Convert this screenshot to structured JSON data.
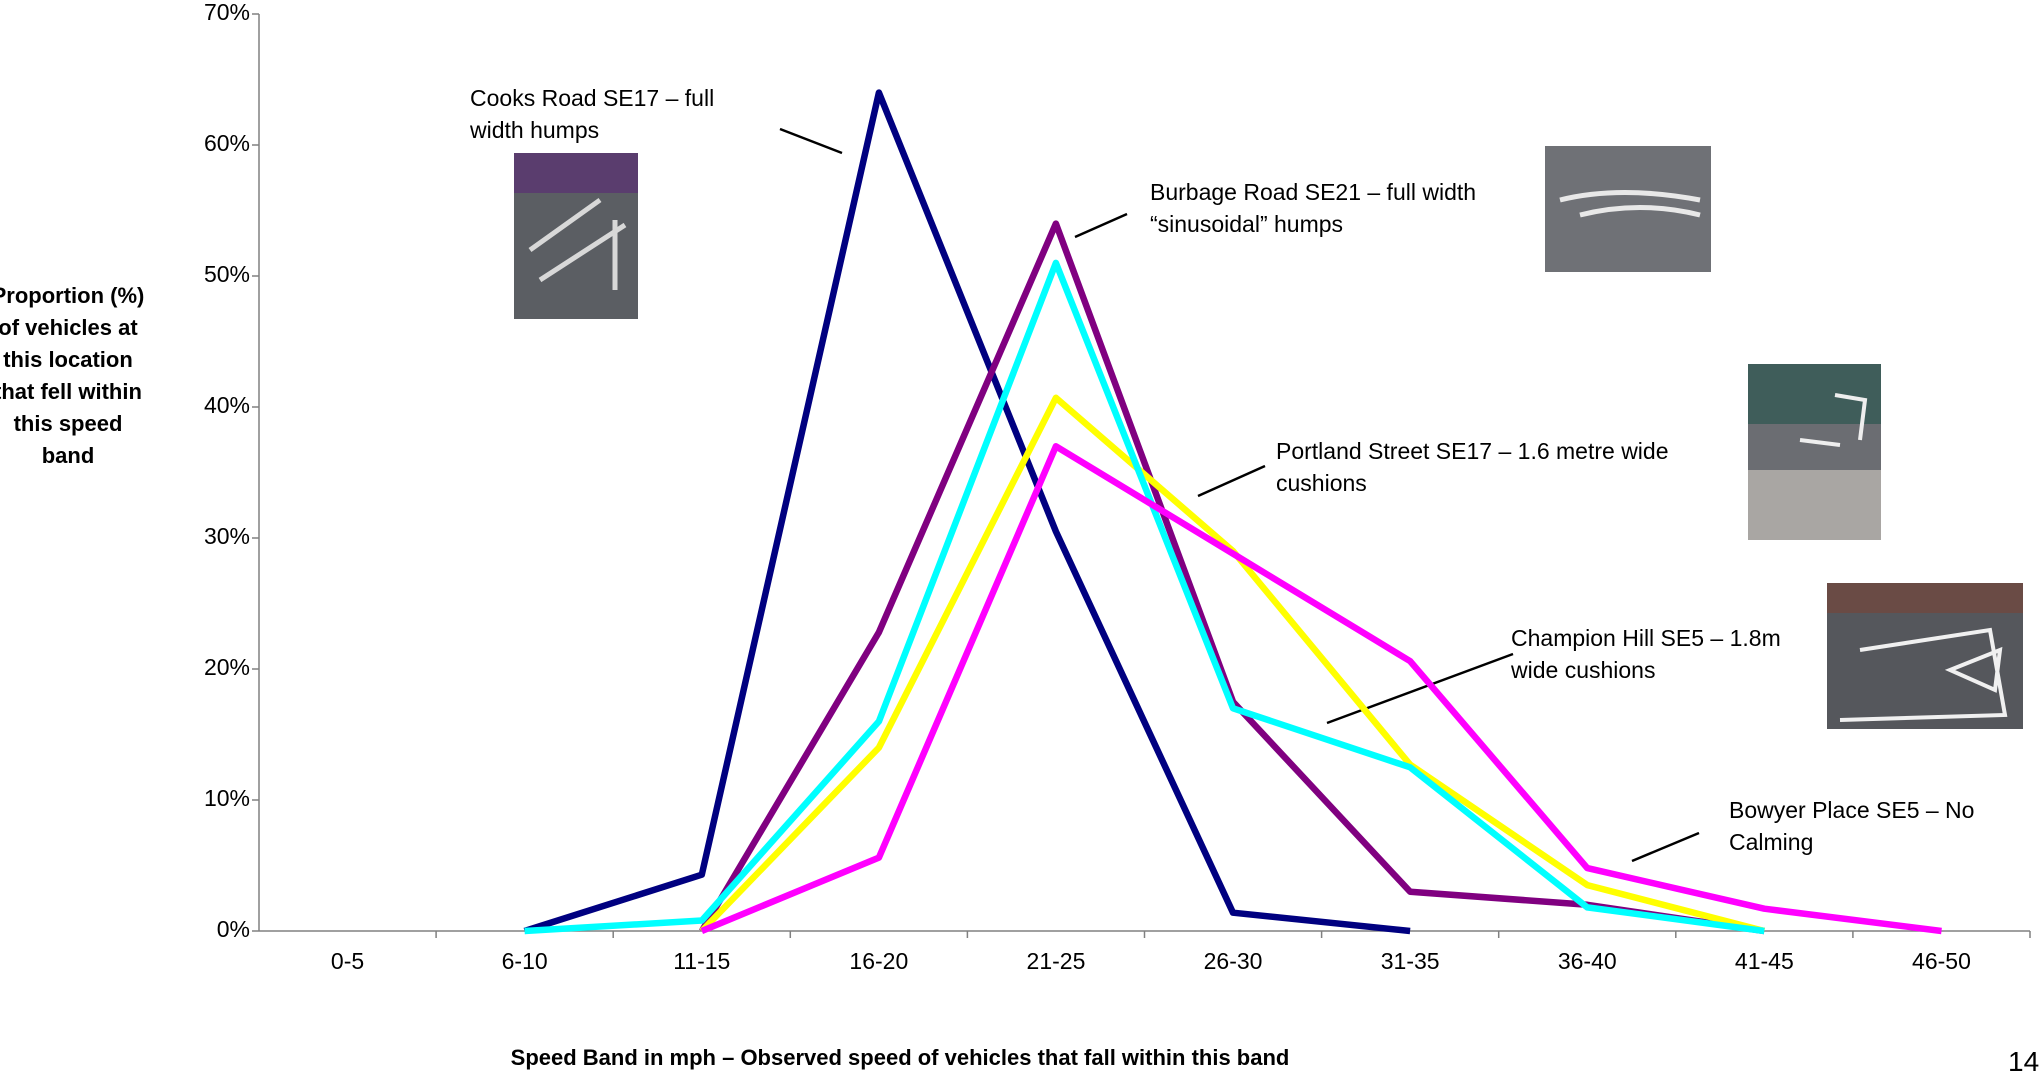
{
  "chart_data": {
    "type": "line",
    "y_label": "Proportion (%) of vehicles at this location that fell within this speed band",
    "x_label": "Speed Band in mph – Observed speed of vehicles that fall within this band",
    "categories": [
      "0-5",
      "6-10",
      "11-15",
      "16-20",
      "21-25",
      "26-30",
      "31-35",
      "36-40",
      "41-45",
      "46-50"
    ],
    "ylim": [
      0,
      70
    ],
    "yticks": [
      {
        "value": 0,
        "label": "0%"
      },
      {
        "value": 10,
        "label": "10%"
      },
      {
        "value": 20,
        "label": "20%"
      },
      {
        "value": 30,
        "label": "30%"
      },
      {
        "value": 40,
        "label": "40%"
      },
      {
        "value": 50,
        "label": "50%"
      },
      {
        "value": 60,
        "label": "60%"
      },
      {
        "value": 70,
        "label": "70%"
      }
    ],
    "series": [
      {
        "name": "Cooks Road SE17 – full width humps",
        "color": "#000080",
        "values": [
          null,
          0,
          4.3,
          64,
          30.5,
          1.4,
          0,
          null,
          null,
          null
        ]
      },
      {
        "name": "Burbage Road SE21 – full width “sinusoidal” humps",
        "color": "#800080",
        "values": [
          null,
          null,
          0,
          22.8,
          54,
          17.5,
          3,
          2,
          0,
          null
        ]
      },
      {
        "name": "Portland Street SE17 – 1.6 metre wide cushions",
        "color": "#ffff00",
        "values": [
          null,
          null,
          0,
          14,
          40.7,
          29,
          12.7,
          3.5,
          0,
          null
        ]
      },
      {
        "name": "Champion Hill SE5 – 1.8m wide cushions",
        "color": "#00ffff",
        "values": [
          null,
          0,
          0.8,
          16,
          51,
          17,
          12.5,
          1.8,
          0,
          null
        ]
      },
      {
        "name": "Bowyer Place SE5 – No Calming",
        "color": "#ff00ff",
        "values": [
          null,
          null,
          0,
          5.6,
          37,
          28.8,
          20.6,
          4.8,
          1.7,
          0
        ]
      }
    ],
    "page_number": "14"
  }
}
